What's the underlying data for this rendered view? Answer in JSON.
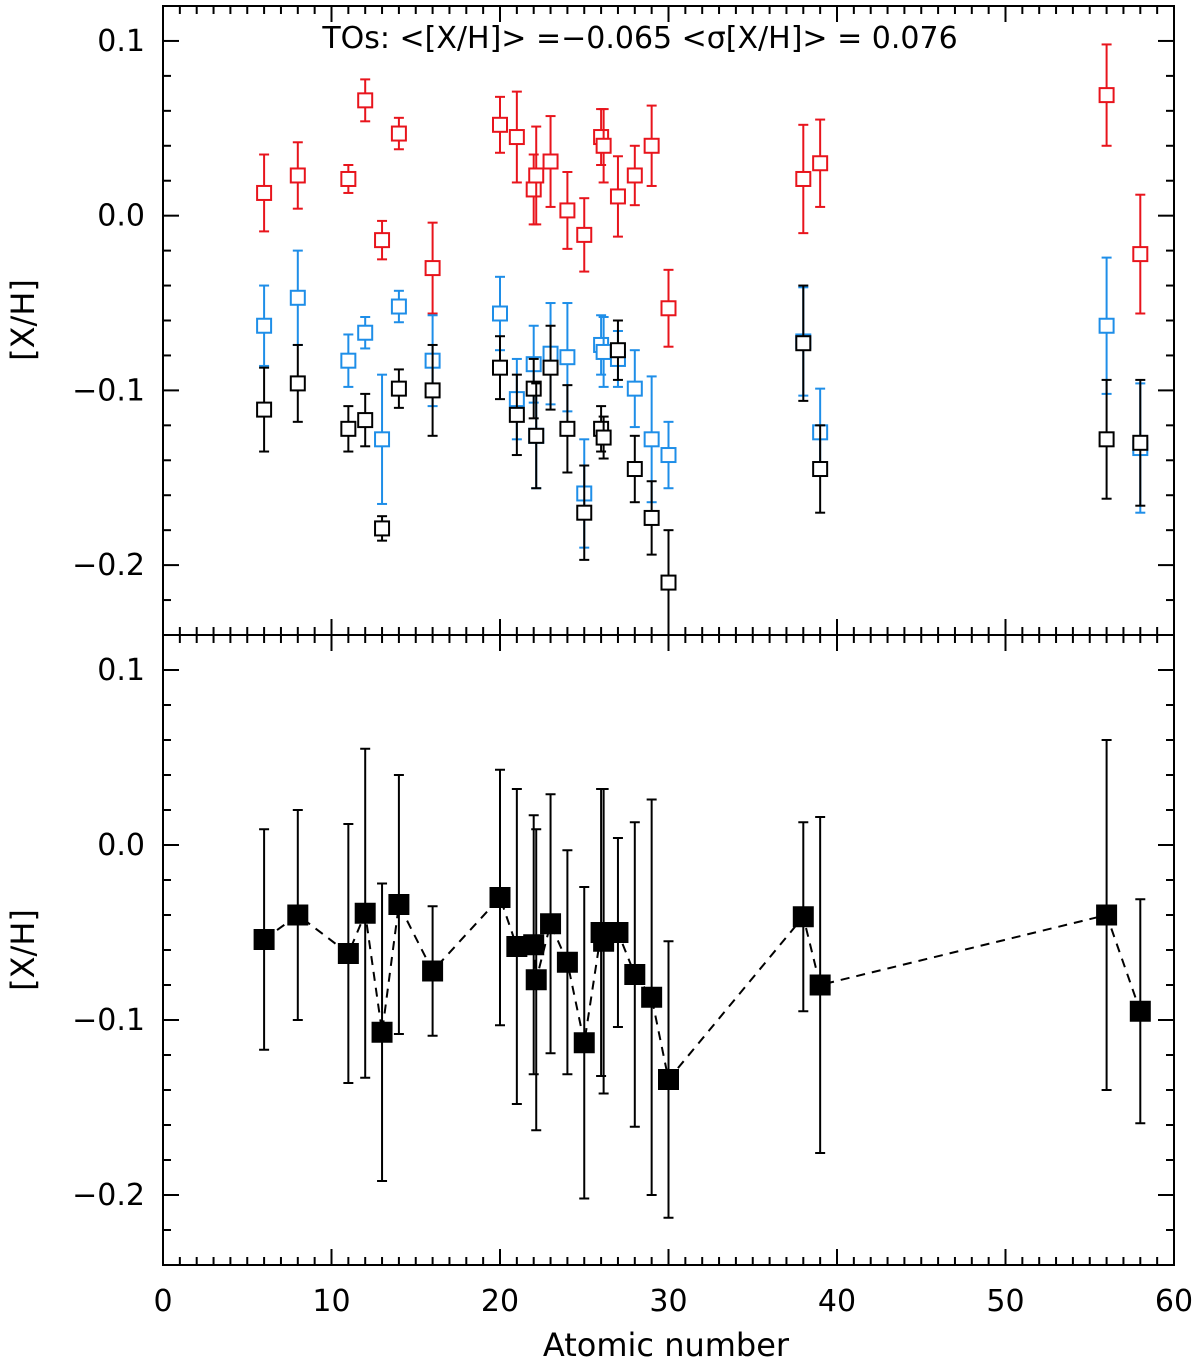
{
  "chart_data": [
    {
      "type": "scatter",
      "panel": "top",
      "xlabel": "",
      "ylabel": "[X/H]",
      "xlim": [
        0,
        60
      ],
      "ylim": [
        -0.24,
        0.12
      ],
      "yticks": [
        0.1,
        0.0,
        -0.1,
        -0.2
      ],
      "ytick_labels": [
        "0.1",
        "0.0",
        "−0.1",
        "−0.2"
      ],
      "annotation": "TOs: <[X/H]> =−0.065   <σ[X/H]> = 0.076",
      "series": [
        {
          "name": "red",
          "color": "#e8141c",
          "marker": "open-square",
          "points": [
            {
              "x": 6,
              "y": 0.013,
              "err": 0.022
            },
            {
              "x": 8,
              "y": 0.023,
              "err": 0.019
            },
            {
              "x": 11,
              "y": 0.021,
              "err": 0.008
            },
            {
              "x": 12,
              "y": 0.066,
              "err": 0.012
            },
            {
              "x": 13,
              "y": -0.014,
              "err": 0.011
            },
            {
              "x": 14,
              "y": 0.047,
              "err": 0.009
            },
            {
              "x": 16,
              "y": -0.03,
              "err": 0.026
            },
            {
              "x": 20,
              "y": 0.052,
              "err": 0.016
            },
            {
              "x": 21,
              "y": 0.045,
              "err": 0.026
            },
            {
              "x": 22,
              "y": 0.015,
              "err": 0.02
            },
            {
              "x": 22.15,
              "y": 0.023,
              "err": 0.028
            },
            {
              "x": 23,
              "y": 0.031,
              "err": 0.026
            },
            {
              "x": 24,
              "y": 0.003,
              "err": 0.022
            },
            {
              "x": 25,
              "y": -0.011,
              "err": 0.021
            },
            {
              "x": 26,
              "y": 0.045,
              "err": 0.016
            },
            {
              "x": 26.15,
              "y": 0.04,
              "err": 0.021
            },
            {
              "x": 27,
              "y": 0.011,
              "err": 0.023
            },
            {
              "x": 28,
              "y": 0.023,
              "err": 0.017
            },
            {
              "x": 29,
              "y": 0.04,
              "err": 0.023
            },
            {
              "x": 30,
              "y": -0.053,
              "err": 0.022
            },
            {
              "x": 38,
              "y": 0.021,
              "err": 0.031
            },
            {
              "x": 39,
              "y": 0.03,
              "err": 0.025
            },
            {
              "x": 56,
              "y": 0.069,
              "err": 0.029
            },
            {
              "x": 58,
              "y": -0.022,
              "err": 0.034
            }
          ]
        },
        {
          "name": "blue",
          "color": "#1e8ee8",
          "marker": "open-square",
          "points": [
            {
              "x": 6,
              "y": -0.063,
              "err": 0.023
            },
            {
              "x": 8,
              "y": -0.047,
              "err": 0.027
            },
            {
              "x": 11,
              "y": -0.083,
              "err": 0.015
            },
            {
              "x": 12,
              "y": -0.067,
              "err": 0.009
            },
            {
              "x": 13,
              "y": -0.128,
              "err": 0.037
            },
            {
              "x": 14,
              "y": -0.052,
              "err": 0.009
            },
            {
              "x": 16,
              "y": -0.083,
              "err": 0.026
            },
            {
              "x": 20,
              "y": -0.056,
              "err": 0.021
            },
            {
              "x": 21,
              "y": -0.105,
              "err": 0.023
            },
            {
              "x": 22,
              "y": -0.085,
              "err": 0.022
            },
            {
              "x": 22.15,
              "y": -0.126,
              "err": 0.03
            },
            {
              "x": 23,
              "y": -0.079,
              "err": 0.029
            },
            {
              "x": 24,
              "y": -0.081,
              "err": 0.031
            },
            {
              "x": 25,
              "y": -0.159,
              "err": 0.031
            },
            {
              "x": 26,
              "y": -0.074,
              "err": 0.017
            },
            {
              "x": 26.15,
              "y": -0.078,
              "err": 0.02
            },
            {
              "x": 27,
              "y": -0.082,
              "err": 0.016
            },
            {
              "x": 28,
              "y": -0.099,
              "err": 0.022
            },
            {
              "x": 29,
              "y": -0.128,
              "err": 0.036
            },
            {
              "x": 30,
              "y": -0.137,
              "err": 0.019
            },
            {
              "x": 38,
              "y": -0.072,
              "err": 0.031
            },
            {
              "x": 39,
              "y": -0.124,
              "err": 0.025
            },
            {
              "x": 56,
              "y": -0.063,
              "err": 0.039
            },
            {
              "x": 58,
              "y": -0.133,
              "err": 0.037
            }
          ]
        },
        {
          "name": "black",
          "color": "#000000",
          "marker": "open-square",
          "points": [
            {
              "x": 6,
              "y": -0.111,
              "err": 0.024
            },
            {
              "x": 8,
              "y": -0.096,
              "err": 0.022
            },
            {
              "x": 11,
              "y": -0.122,
              "err": 0.013
            },
            {
              "x": 12,
              "y": -0.117,
              "err": 0.015
            },
            {
              "x": 13,
              "y": -0.179,
              "err": 0.007
            },
            {
              "x": 14,
              "y": -0.099,
              "err": 0.011
            },
            {
              "x": 16,
              "y": -0.1,
              "err": 0.026
            },
            {
              "x": 20,
              "y": -0.087,
              "err": 0.018
            },
            {
              "x": 21,
              "y": -0.114,
              "err": 0.023
            },
            {
              "x": 22,
              "y": -0.099,
              "err": 0.017
            },
            {
              "x": 22.15,
              "y": -0.126,
              "err": 0.03
            },
            {
              "x": 23,
              "y": -0.087,
              "err": 0.024
            },
            {
              "x": 24,
              "y": -0.122,
              "err": 0.025
            },
            {
              "x": 25,
              "y": -0.17,
              "err": 0.027
            },
            {
              "x": 26,
              "y": -0.122,
              "err": 0.013
            },
            {
              "x": 26.15,
              "y": -0.127,
              "err": 0.012
            },
            {
              "x": 27,
              "y": -0.077,
              "err": 0.017
            },
            {
              "x": 28,
              "y": -0.145,
              "err": 0.019
            },
            {
              "x": 29,
              "y": -0.173,
              "err": 0.021
            },
            {
              "x": 30,
              "y": -0.21,
              "err": 0.03
            },
            {
              "x": 38,
              "y": -0.073,
              "err": 0.033
            },
            {
              "x": 39,
              "y": -0.145,
              "err": 0.025
            },
            {
              "x": 56,
              "y": -0.128,
              "err": 0.034
            },
            {
              "x": 58,
              "y": -0.13,
              "err": 0.036
            }
          ]
        }
      ]
    },
    {
      "type": "line",
      "panel": "bottom",
      "xlabel": "Atomic number",
      "ylabel": "[X/H]",
      "xlim": [
        0,
        60
      ],
      "ylim": [
        -0.24,
        0.12
      ],
      "xticks": [
        0,
        10,
        20,
        30,
        40,
        50,
        60
      ],
      "xtick_labels": [
        "0",
        "10",
        "20",
        "30",
        "40",
        "50",
        "60"
      ],
      "yticks": [
        0.1,
        0.0,
        -0.1,
        -0.2
      ],
      "ytick_labels": [
        "0.1",
        "0.0",
        "−0.1",
        "−0.2"
      ],
      "series": [
        {
          "name": "mean",
          "color": "#000000",
          "marker": "filled-square",
          "line_style": "dashed",
          "points": [
            {
              "x": 6,
              "y": -0.054,
              "err": 0.063
            },
            {
              "x": 8,
              "y": -0.04,
              "err": 0.06
            },
            {
              "x": 11,
              "y": -0.062,
              "err": 0.074
            },
            {
              "x": 12,
              "y": -0.039,
              "err": 0.094
            },
            {
              "x": 13,
              "y": -0.107,
              "err": 0.085
            },
            {
              "x": 14,
              "y": -0.034,
              "err": 0.074
            },
            {
              "x": 16,
              "y": -0.072,
              "err": 0.037
            },
            {
              "x": 20,
              "y": -0.03,
              "err": 0.073
            },
            {
              "x": 21,
              "y": -0.058,
              "err": 0.09
            },
            {
              "x": 22,
              "y": -0.057,
              "err": 0.074
            },
            {
              "x": 22.15,
              "y": -0.077,
              "err": 0.086
            },
            {
              "x": 23,
              "y": -0.045,
              "err": 0.074
            },
            {
              "x": 24,
              "y": -0.067,
              "err": 0.064
            },
            {
              "x": 25,
              "y": -0.113,
              "err": 0.089
            },
            {
              "x": 26,
              "y": -0.05,
              "err": 0.082
            },
            {
              "x": 26.15,
              "y": -0.055,
              "err": 0.087
            },
            {
              "x": 27,
              "y": -0.05,
              "err": 0.054
            },
            {
              "x": 28,
              "y": -0.074,
              "err": 0.087
            },
            {
              "x": 29,
              "y": -0.087,
              "err": 0.113
            },
            {
              "x": 30,
              "y": -0.134,
              "err": 0.079
            },
            {
              "x": 38,
              "y": -0.041,
              "err": 0.054
            },
            {
              "x": 39,
              "y": -0.08,
              "err": 0.096
            },
            {
              "x": 56,
              "y": -0.04,
              "err": 0.1
            },
            {
              "x": 58,
              "y": -0.095,
              "err": 0.064
            }
          ]
        }
      ]
    }
  ]
}
